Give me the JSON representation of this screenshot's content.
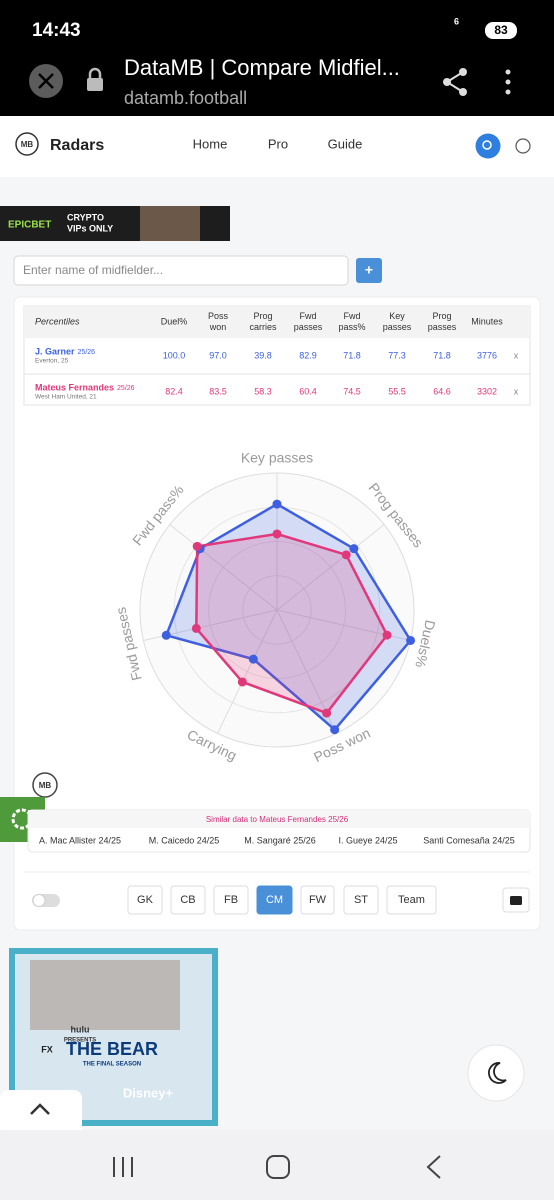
{
  "status_bar": {
    "time": "14:43",
    "battery": "83",
    "network": "6"
  },
  "browser": {
    "title": "DataMB | Compare Midfiel...",
    "url": "datamb.football"
  },
  "nav": {
    "logo": "MB",
    "brand": "Radars",
    "links": [
      "Home",
      "Pro",
      "Guide"
    ]
  },
  "ad_top": {
    "brand": "EPICBET",
    "lines": [
      "CRYPTO",
      "VIPs ONLY"
    ]
  },
  "search": {
    "placeholder": "Enter name of midfielder...",
    "button": "+"
  },
  "table": {
    "corner": "Percentiles",
    "columns": [
      [
        "Duel%"
      ],
      [
        "Poss",
        "won"
      ],
      [
        "Prog",
        "carries"
      ],
      [
        "Fwd",
        "passes"
      ],
      [
        "Fwd",
        "pass%"
      ],
      [
        "Key",
        "passes"
      ],
      [
        "Prog",
        "passes"
      ],
      [
        "Minutes"
      ]
    ],
    "rows": [
      {
        "name": "J. Garner",
        "season": "25/26",
        "team": "Everton, 25",
        "values": [
          "100.0",
          "97.0",
          "39.8",
          "82.9",
          "71.8",
          "77.3",
          "71.8",
          "3776"
        ],
        "remove": "x"
      },
      {
        "name": "Mateus Fernandes",
        "season": "25/26",
        "team": "West Ham United, 21",
        "values": [
          "82.4",
          "83.5",
          "58.3",
          "60.4",
          "74.5",
          "55.5",
          "64.6",
          "3302"
        ],
        "remove": "x"
      }
    ]
  },
  "chart_data": {
    "type": "radar",
    "categories": [
      "Key passes",
      "Prog passes",
      "Duels%",
      "Poss won",
      "Carrying",
      "Fwd passes",
      "Fwd pass%"
    ],
    "series": [
      {
        "color": "#3d5fe0",
        "values": [
          77.3,
          71.8,
          100,
          97,
          39.8,
          82.9,
          71.8
        ]
      },
      {
        "color": "#e0387a",
        "values": [
          55.5,
          64.6,
          82.4,
          83.5,
          58.3,
          60.4,
          74.5
        ]
      }
    ],
    "ylim": [
      0,
      100
    ]
  },
  "radar_logo": "MB",
  "similar": {
    "title": "Similar data to Mateus Fernandes 25/26",
    "players": [
      "A. Mac Allister 24/25",
      "M. Caicedo 24/25",
      "M. Sangaré 25/26",
      "I. Gueye 24/25",
      "Santi Comesaña 24/25"
    ]
  },
  "positions": {
    "buttons": [
      "GK",
      "CB",
      "FB",
      "CM",
      "FW",
      "ST",
      "Team"
    ],
    "active": "CM"
  },
  "ad_bottom": {
    "lines": [
      "hulu",
      "PRESENTS",
      "FX",
      "THE BEAR",
      "THE FINAL SEASON",
      "Disney+"
    ]
  }
}
